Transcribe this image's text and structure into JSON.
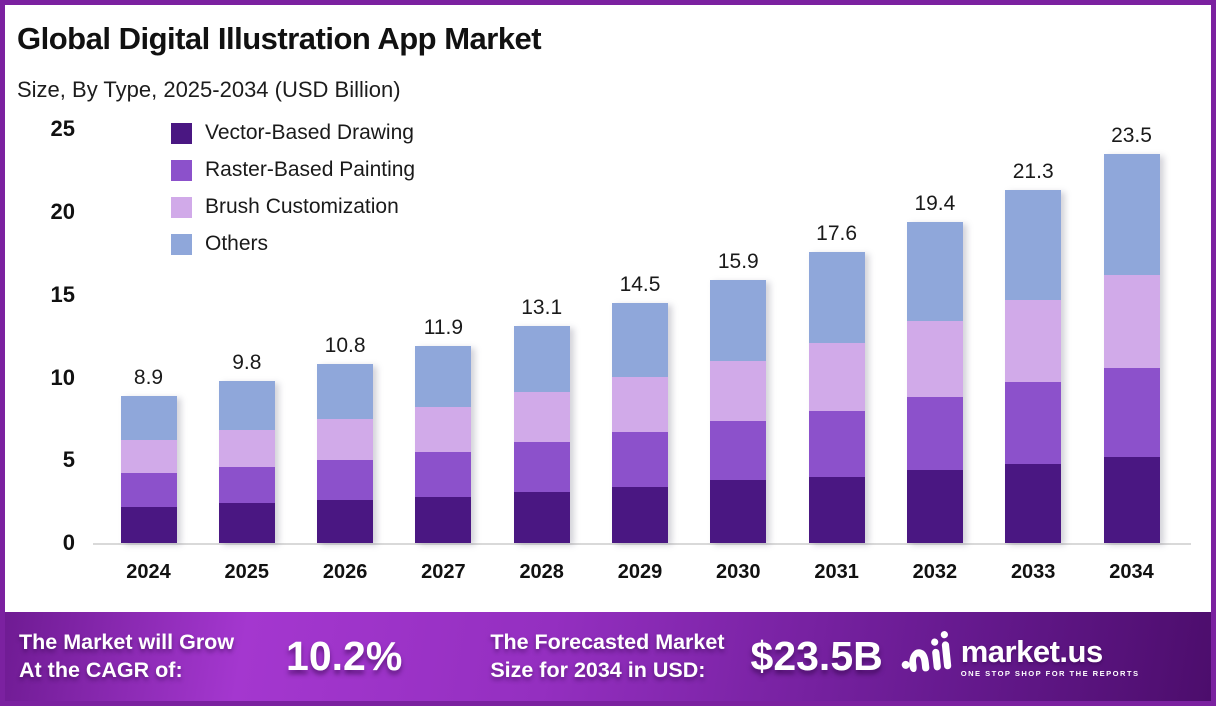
{
  "header": {
    "title": "Global Digital Illustration App Market",
    "subtitle": "Size, By Type, 2025-2034 (USD Billion)"
  },
  "chart_data": {
    "type": "bar",
    "stacked": true,
    "title": "Global Digital Illustration App Market Size, By Type, 2025-2034 (USD Billion)",
    "categories": [
      "2024",
      "2025",
      "2026",
      "2027",
      "2028",
      "2029",
      "2030",
      "2031",
      "2032",
      "2033",
      "2034"
    ],
    "series": [
      {
        "name": "Vector-Based Drawing",
        "color": "#4a1782",
        "values": [
          2.2,
          2.4,
          2.6,
          2.8,
          3.1,
          3.4,
          3.8,
          4.0,
          4.4,
          4.8,
          5.2
        ]
      },
      {
        "name": "Raster-Based Painting",
        "color": "#8c51cb",
        "values": [
          2.0,
          2.2,
          2.4,
          2.7,
          3.0,
          3.3,
          3.6,
          4.0,
          4.4,
          4.9,
          5.4
        ]
      },
      {
        "name": "Brush Customization",
        "color": "#d1aae9",
        "values": [
          2.0,
          2.2,
          2.5,
          2.7,
          3.0,
          3.3,
          3.6,
          4.1,
          4.6,
          5.0,
          5.6
        ]
      },
      {
        "name": "Others",
        "color": "#8fa7da",
        "values": [
          2.7,
          3.0,
          3.3,
          3.7,
          4.0,
          4.5,
          4.9,
          5.5,
          6.0,
          6.6,
          7.3
        ]
      }
    ],
    "totals": [
      8.9,
      9.8,
      10.8,
      11.9,
      13.1,
      14.5,
      15.9,
      17.6,
      19.4,
      21.3,
      23.5
    ],
    "xlabel": "",
    "ylabel": "",
    "ylim": [
      0,
      25
    ],
    "yticks": [
      0,
      5,
      10,
      15,
      20,
      25
    ],
    "grid": false,
    "legend_position": "top-left",
    "stack_order": "first-series-at-bottom"
  },
  "footer": {
    "cagr_label_line1": "The Market will Grow",
    "cagr_label_line2": "At the CAGR of:",
    "cagr_value": "10.2%",
    "forecast_label_line1": "The Forecasted Market",
    "forecast_label_line2": "Size for 2034 in USD:",
    "forecast_value": "$23.5B",
    "brand_name": "market.us",
    "brand_tagline": "ONE STOP SHOP FOR THE REPORTS"
  },
  "colors": {
    "border": "#7b21a0",
    "banner_gradient_start": "#6f1b93",
    "banner_gradient_bright": "#a437cf",
    "banner_gradient_end": "#4c0d6c",
    "baseline": "#d9d9d9",
    "text": "#111111"
  }
}
